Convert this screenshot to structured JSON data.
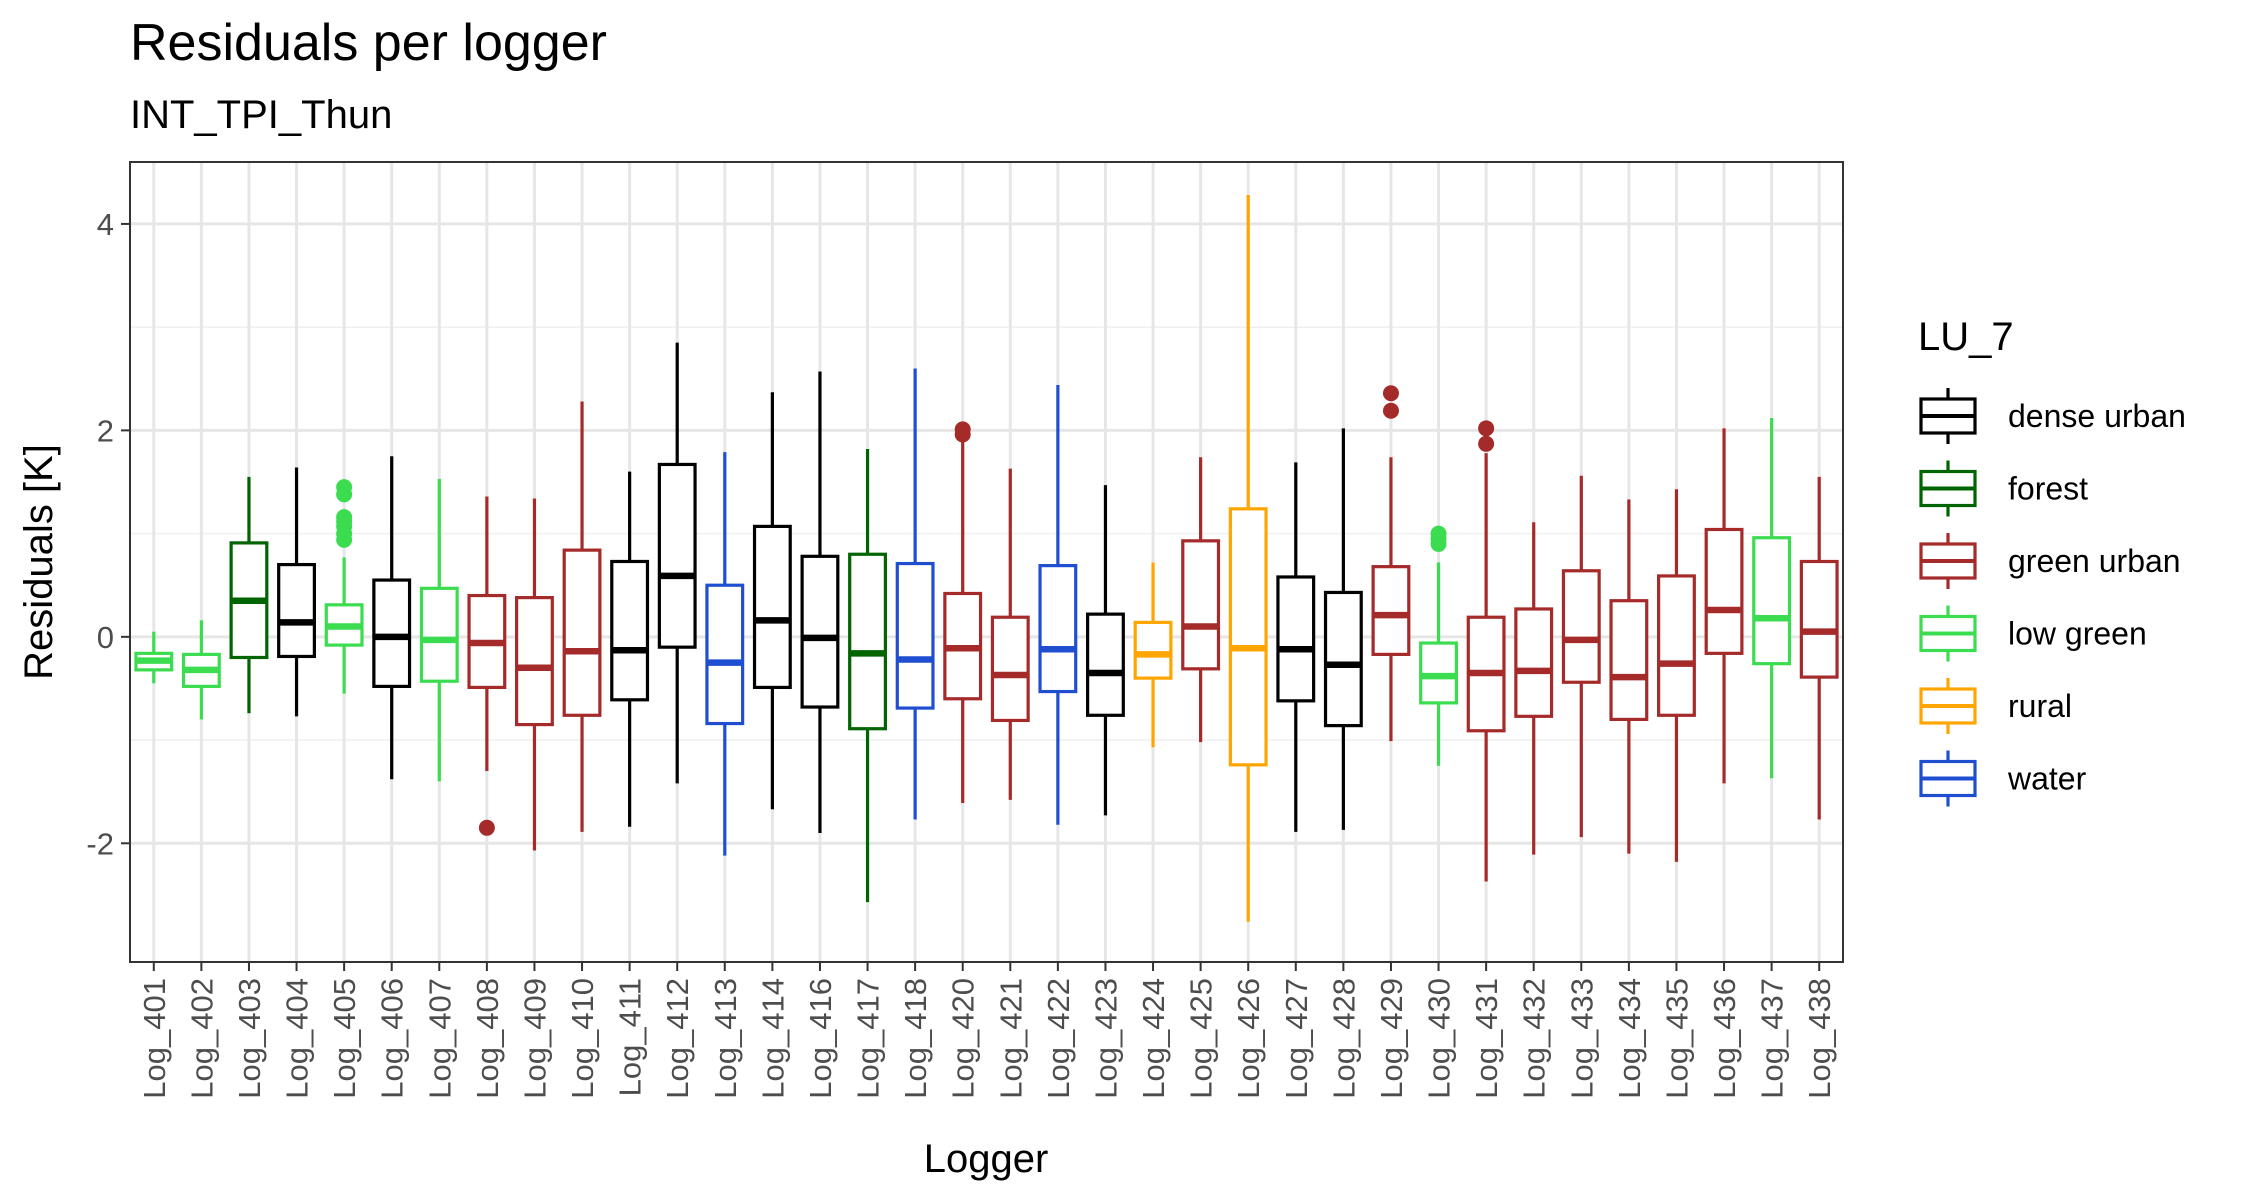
{
  "chart_data": {
    "type": "boxplot",
    "title": "Residuals per logger",
    "subtitle": "INT_TPI_Thun",
    "xlabel": "Logger",
    "ylabel": "Residuals [K]",
    "ylim": [
      -3.15,
      4.6
    ],
    "y_ticks": [
      -2,
      0,
      2,
      4
    ],
    "y_tick_labels": [
      "-2",
      "0",
      "2",
      "4"
    ],
    "grid": true,
    "legend": {
      "title": "LU_7",
      "position": "right",
      "items": [
        {
          "key": "dense urban",
          "label": "dense urban",
          "color": "#000000"
        },
        {
          "key": "forest",
          "label": "forest",
          "color": "#006400"
        },
        {
          "key": "green urban",
          "label": "green urban",
          "color": "#A52A2A"
        },
        {
          "key": "low green",
          "label": "low green",
          "color": "#3CDC50"
        },
        {
          "key": "rural",
          "label": "rural",
          "color": "#FFA500"
        },
        {
          "key": "water",
          "label": "water",
          "color": "#1F4FD0"
        }
      ]
    },
    "boxes": [
      {
        "logger": "Log_401",
        "lu": "low green",
        "lower": -0.45,
        "q1": -0.32,
        "median": -0.23,
        "q3": -0.16,
        "upper": 0.05,
        "outliers": []
      },
      {
        "logger": "Log_402",
        "lu": "low green",
        "lower": -0.8,
        "q1": -0.48,
        "median": -0.32,
        "q3": -0.17,
        "upper": 0.16,
        "outliers": []
      },
      {
        "logger": "Log_403",
        "lu": "forest",
        "lower": -0.74,
        "q1": -0.2,
        "median": 0.35,
        "q3": 0.91,
        "upper": 1.55,
        "outliers": []
      },
      {
        "logger": "Log_404",
        "lu": "dense urban",
        "lower": -0.77,
        "q1": -0.19,
        "median": 0.14,
        "q3": 0.7,
        "upper": 1.64,
        "outliers": []
      },
      {
        "logger": "Log_405",
        "lu": "low green",
        "lower": -0.55,
        "q1": -0.08,
        "median": 0.1,
        "q3": 0.31,
        "upper": 0.77,
        "outliers": [
          0.94,
          1.0,
          1.07,
          1.12,
          1.16,
          1.38,
          1.45
        ]
      },
      {
        "logger": "Log_406",
        "lu": "dense urban",
        "lower": -1.38,
        "q1": -0.48,
        "median": 0.0,
        "q3": 0.55,
        "upper": 1.75,
        "outliers": []
      },
      {
        "logger": "Log_407",
        "lu": "low green",
        "lower": -1.4,
        "q1": -0.43,
        "median": -0.03,
        "q3": 0.47,
        "upper": 1.53,
        "outliers": []
      },
      {
        "logger": "Log_408",
        "lu": "green urban",
        "lower": -1.3,
        "q1": -0.49,
        "median": -0.06,
        "q3": 0.4,
        "upper": 1.36,
        "outliers": [
          -1.85
        ]
      },
      {
        "logger": "Log_409",
        "lu": "green urban",
        "lower": -2.07,
        "q1": -0.85,
        "median": -0.3,
        "q3": 0.38,
        "upper": 1.34,
        "outliers": []
      },
      {
        "logger": "Log_410",
        "lu": "green urban",
        "lower": -1.89,
        "q1": -0.76,
        "median": -0.14,
        "q3": 0.84,
        "upper": 2.28,
        "outliers": []
      },
      {
        "logger": "Log_411",
        "lu": "dense urban",
        "lower": -1.84,
        "q1": -0.61,
        "median": -0.13,
        "q3": 0.73,
        "upper": 1.6,
        "outliers": []
      },
      {
        "logger": "Log_412",
        "lu": "dense urban",
        "lower": -1.42,
        "q1": -0.1,
        "median": 0.59,
        "q3": 1.67,
        "upper": 2.85,
        "outliers": []
      },
      {
        "logger": "Log_413",
        "lu": "water",
        "lower": -2.12,
        "q1": -0.84,
        "median": -0.25,
        "q3": 0.5,
        "upper": 1.79,
        "outliers": []
      },
      {
        "logger": "Log_414",
        "lu": "dense urban",
        "lower": -1.67,
        "q1": -0.49,
        "median": 0.16,
        "q3": 1.07,
        "upper": 2.37,
        "outliers": []
      },
      {
        "logger": "Log_416",
        "lu": "dense urban",
        "lower": -1.9,
        "q1": -0.68,
        "median": -0.01,
        "q3": 0.78,
        "upper": 2.57,
        "outliers": []
      },
      {
        "logger": "Log_417",
        "lu": "forest",
        "lower": -2.57,
        "q1": -0.89,
        "median": -0.16,
        "q3": 0.8,
        "upper": 1.82,
        "outliers": []
      },
      {
        "logger": "Log_418",
        "lu": "water",
        "lower": -1.77,
        "q1": -0.69,
        "median": -0.22,
        "q3": 0.71,
        "upper": 2.6,
        "outliers": []
      },
      {
        "logger": "Log_420",
        "lu": "green urban",
        "lower": -1.61,
        "q1": -0.6,
        "median": -0.11,
        "q3": 0.42,
        "upper": 1.93,
        "outliers": [
          1.96,
          2.01
        ]
      },
      {
        "logger": "Log_421",
        "lu": "green urban",
        "lower": -1.58,
        "q1": -0.81,
        "median": -0.37,
        "q3": 0.19,
        "upper": 1.63,
        "outliers": []
      },
      {
        "logger": "Log_422",
        "lu": "water",
        "lower": -1.82,
        "q1": -0.53,
        "median": -0.12,
        "q3": 0.69,
        "upper": 2.44,
        "outliers": []
      },
      {
        "logger": "Log_423",
        "lu": "dense urban",
        "lower": -1.73,
        "q1": -0.76,
        "median": -0.35,
        "q3": 0.22,
        "upper": 1.47,
        "outliers": []
      },
      {
        "logger": "Log_424",
        "lu": "rural",
        "lower": -1.07,
        "q1": -0.4,
        "median": -0.17,
        "q3": 0.14,
        "upper": 0.72,
        "outliers": []
      },
      {
        "logger": "Log_425",
        "lu": "green urban",
        "lower": -1.02,
        "q1": -0.31,
        "median": 0.1,
        "q3": 0.93,
        "upper": 1.74,
        "outliers": []
      },
      {
        "logger": "Log_426",
        "lu": "rural",
        "lower": -2.76,
        "q1": -1.24,
        "median": -0.11,
        "q3": 1.24,
        "upper": 4.28,
        "outliers": []
      },
      {
        "logger": "Log_427",
        "lu": "dense urban",
        "lower": -1.89,
        "q1": -0.62,
        "median": -0.12,
        "q3": 0.58,
        "upper": 1.69,
        "outliers": []
      },
      {
        "logger": "Log_428",
        "lu": "dense urban",
        "lower": -1.87,
        "q1": -0.86,
        "median": -0.27,
        "q3": 0.43,
        "upper": 2.02,
        "outliers": []
      },
      {
        "logger": "Log_429",
        "lu": "green urban",
        "lower": -1.01,
        "q1": -0.17,
        "median": 0.21,
        "q3": 0.68,
        "upper": 1.74,
        "outliers": [
          2.19,
          2.36
        ]
      },
      {
        "logger": "Log_430",
        "lu": "low green",
        "lower": -1.25,
        "q1": -0.64,
        "median": -0.38,
        "q3": -0.06,
        "upper": 0.72,
        "outliers": [
          0.9,
          0.95,
          1.0
        ]
      },
      {
        "logger": "Log_431",
        "lu": "green urban",
        "lower": -2.37,
        "q1": -0.91,
        "median": -0.35,
        "q3": 0.19,
        "upper": 1.78,
        "outliers": [
          1.87,
          2.02
        ]
      },
      {
        "logger": "Log_432",
        "lu": "green urban",
        "lower": -2.11,
        "q1": -0.77,
        "median": -0.33,
        "q3": 0.27,
        "upper": 1.11,
        "outliers": []
      },
      {
        "logger": "Log_433",
        "lu": "green urban",
        "lower": -1.94,
        "q1": -0.44,
        "median": -0.03,
        "q3": 0.64,
        "upper": 1.56,
        "outliers": []
      },
      {
        "logger": "Log_434",
        "lu": "green urban",
        "lower": -2.1,
        "q1": -0.8,
        "median": -0.39,
        "q3": 0.35,
        "upper": 1.33,
        "outliers": []
      },
      {
        "logger": "Log_435",
        "lu": "green urban",
        "lower": -2.18,
        "q1": -0.76,
        "median": -0.26,
        "q3": 0.59,
        "upper": 1.43,
        "outliers": []
      },
      {
        "logger": "Log_436",
        "lu": "green urban",
        "lower": -1.42,
        "q1": -0.16,
        "median": 0.26,
        "q3": 1.04,
        "upper": 2.02,
        "outliers": []
      },
      {
        "logger": "Log_437",
        "lu": "low green",
        "lower": -1.37,
        "q1": -0.26,
        "median": 0.18,
        "q3": 0.96,
        "upper": 2.12,
        "outliers": []
      },
      {
        "logger": "Log_438",
        "lu": "green urban",
        "lower": -1.77,
        "q1": -0.39,
        "median": 0.05,
        "q3": 0.73,
        "upper": 1.55,
        "outliers": []
      }
    ]
  }
}
